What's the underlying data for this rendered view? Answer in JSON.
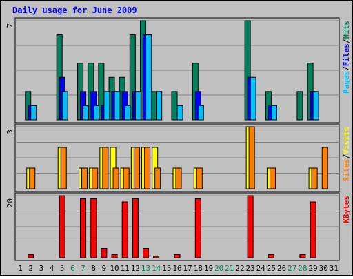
{
  "colors": {
    "frame_bg": "#c0c0c0",
    "plot_bg": "#c0c0c0",
    "grid": "#808080",
    "title": "#0000ff",
    "hits": "#00805c",
    "files": "#0000ff",
    "pages": "#00c0ff",
    "visits": "#ffff00",
    "sites": "#ff8000",
    "kbytes": "#ff0000",
    "weekend_label": "#00805c",
    "day_label": "#000000"
  },
  "chart_data": {
    "type": "bar",
    "title": "Daily usage for June 2009",
    "categories": [
      "1",
      "2",
      "3",
      "4",
      "5",
      "6",
      "7",
      "8",
      "9",
      "10",
      "11",
      "12",
      "13",
      "14",
      "15",
      "16",
      "17",
      "18",
      "19",
      "20",
      "21",
      "22",
      "23",
      "24",
      "25",
      "26",
      "27",
      "28",
      "29",
      "30",
      "31"
    ],
    "weekend_days": [
      "6",
      "7",
      "13",
      "14",
      "20",
      "21",
      "27",
      "28"
    ],
    "panels": [
      {
        "id": "hits",
        "max_label": "7",
        "ymax": 7,
        "legend": [
          {
            "text": "Pages",
            "color": "#00c0ff"
          },
          {
            "text": "/",
            "color": "#000000"
          },
          {
            "text": "Files",
            "color": "#0000ff"
          },
          {
            "text": "/",
            "color": "#000000"
          },
          {
            "text": "Hits",
            "color": "#00805c"
          }
        ],
        "series": [
          {
            "name": "Hits",
            "color": "#00805c",
            "values": [
              0,
              2,
              0,
              0,
              6,
              0,
              4,
              4,
              4,
              3,
              3,
              6,
              7,
              2,
              0,
              2,
              0,
              4,
              0,
              0,
              0,
              0,
              7,
              0,
              2,
              0,
              0,
              2,
              4,
              0,
              0
            ]
          },
          {
            "name": "Files",
            "color": "#0000ff",
            "values": [
              0,
              1,
              0,
              0,
              3,
              0,
              2,
              2,
              1,
              2,
              2,
              2,
              6,
              0,
              0,
              0,
              0,
              2,
              0,
              0,
              0,
              0,
              3,
              0,
              1,
              0,
              0,
              0,
              2,
              0,
              0
            ]
          },
          {
            "name": "Pages",
            "color": "#00c0ff",
            "values": [
              0,
              1,
              0,
              0,
              2,
              0,
              1,
              1,
              2,
              2,
              1,
              2,
              6,
              2,
              0,
              1,
              0,
              1,
              0,
              0,
              0,
              0,
              3,
              0,
              1,
              0,
              0,
              0,
              2,
              0,
              0
            ]
          }
        ]
      },
      {
        "id": "visits",
        "max_label": "3",
        "ymax": 3,
        "legend": [
          {
            "text": "Sites",
            "color": "#ff8000"
          },
          {
            "text": "/",
            "color": "#000000"
          },
          {
            "text": "Visits",
            "color": "#ffff00"
          }
        ],
        "series": [
          {
            "name": "Visits",
            "color": "#ffff00",
            "values": [
              0,
              1,
              0,
              0,
              2,
              0,
              1,
              1,
              2,
              2,
              1,
              2,
              2,
              2,
              0,
              1,
              0,
              1,
              0,
              0,
              0,
              0,
              3,
              0,
              1,
              0,
              0,
              0,
              1,
              0,
              0
            ]
          },
          {
            "name": "Sites",
            "color": "#ff8000",
            "values": [
              0,
              1,
              0,
              0,
              2,
              0,
              1,
              1,
              2,
              1,
              1,
              2,
              2,
              1,
              0,
              1,
              0,
              1,
              0,
              0,
              0,
              0,
              3,
              0,
              1,
              0,
              0,
              0,
              1,
              2,
              0
            ]
          }
        ]
      },
      {
        "id": "kbytes",
        "max_label": "20",
        "ymax": 20,
        "legend": [
          {
            "text": "KBytes",
            "color": "#ff0000"
          }
        ],
        "series": [
          {
            "name": "KBytes",
            "color": "#ff0000",
            "values": [
              0,
              1,
              0,
              0,
              20,
              0,
              19,
              19,
              3,
              1,
              18,
              19,
              3,
              0.5,
              0,
              1,
              0,
              19,
              0,
              0,
              0,
              0,
              20,
              0,
              1,
              0,
              0,
              1,
              18,
              0,
              0
            ]
          }
        ]
      }
    ]
  }
}
